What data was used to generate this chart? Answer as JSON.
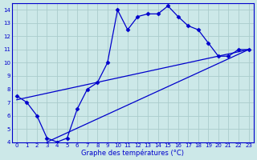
{
  "xlabel": "Graphe des températures (°C)",
  "background_color": "#cce8e8",
  "grid_color": "#aacccc",
  "line_color": "#0000cc",
  "xlim": [
    -0.5,
    23.5
  ],
  "ylim": [
    4,
    14.5
  ],
  "yticks": [
    4,
    5,
    6,
    7,
    8,
    9,
    10,
    11,
    12,
    13,
    14
  ],
  "xticks": [
    0,
    1,
    2,
    3,
    4,
    5,
    6,
    7,
    8,
    9,
    10,
    11,
    12,
    13,
    14,
    15,
    16,
    17,
    18,
    19,
    20,
    21,
    22,
    23
  ],
  "wavy_x": [
    0,
    1,
    2,
    3,
    4,
    5,
    6,
    7,
    8,
    9,
    10,
    11,
    12,
    13,
    14,
    15,
    16,
    17,
    18,
    19,
    20,
    21,
    22,
    23
  ],
  "wavy_y": [
    7.5,
    7.0,
    6.0,
    4.3,
    4.0,
    4.3,
    6.5,
    8.0,
    8.5,
    10.0,
    14.0,
    12.5,
    13.5,
    13.7,
    13.7,
    14.3,
    13.5,
    12.8,
    12.5,
    11.5,
    10.5,
    10.5,
    11.0,
    11.0
  ],
  "trend1_x": [
    0,
    23
  ],
  "trend1_y": [
    7.2,
    11.0
  ],
  "trend2_x": [
    3,
    23
  ],
  "trend2_y": [
    4.0,
    11.0
  ]
}
